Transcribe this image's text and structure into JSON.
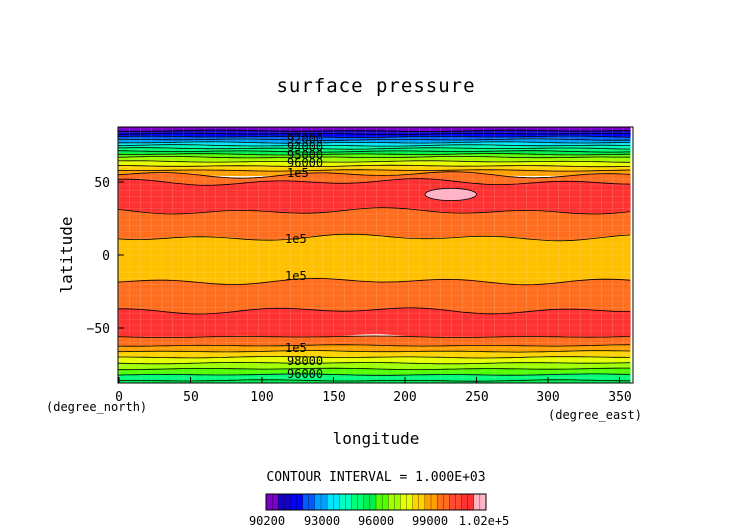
{
  "chart_data": {
    "type": "heatmap",
    "title": "surface pressure",
    "xlabel": "longitude",
    "ylabel": "latitude",
    "x_unit": "(degree_east)",
    "y_unit": "(degree_north)",
    "xlim": [
      0,
      360
    ],
    "ylim": [
      -90,
      90
    ],
    "xticks": [
      "0",
      "50",
      "100",
      "150",
      "200",
      "250",
      "300",
      "350"
    ],
    "yticks": [
      "50",
      "0",
      "−50"
    ],
    "contour_labels": [
      "92000",
      "94000",
      "95000",
      "96000",
      "98000",
      "1e5",
      "1e5",
      "1e5",
      "1e5",
      "98000",
      "96000"
    ],
    "contour_interval_text": "CONTOUR INTERVAL = 1.000E+03",
    "colorbar_ticks": [
      "90200",
      "93000",
      "96000",
      "99000",
      "1.02e+5"
    ],
    "colorbar_colors": [
      "#7a00c8",
      "#1400c8",
      "#0000ff",
      "#005aff",
      "#00a0ff",
      "#00e6ff",
      "#00ffc0",
      "#00ff78",
      "#00f050",
      "#50ff00",
      "#a0ff00",
      "#e6ff00",
      "#ffd200",
      "#ffa000",
      "#ff6e1e",
      "#ff4b32",
      "#ff3232",
      "#ffb4c8"
    ],
    "bands": [
      {
        "lat_top": 88,
        "lat_bottom": 85,
        "color": "#7a00c8"
      },
      {
        "lat_top": 85,
        "lat_bottom": 83,
        "color": "#1400c8"
      },
      {
        "lat_top": 83,
        "lat_bottom": 81,
        "color": "#0000ff"
      },
      {
        "lat_top": 81,
        "lat_bottom": 79,
        "color": "#005aff"
      },
      {
        "lat_top": 79,
        "lat_bottom": 77,
        "color": "#00a0ff"
      },
      {
        "lat_top": 77,
        "lat_bottom": 75,
        "color": "#00e6ff"
      },
      {
        "lat_top": 75,
        "lat_bottom": 73,
        "color": "#00ffc0"
      },
      {
        "lat_top": 73,
        "lat_bottom": 71,
        "color": "#00ff78"
      },
      {
        "lat_top": 71,
        "lat_bottom": 69,
        "color": "#00f050"
      },
      {
        "lat_top": 69,
        "lat_bottom": 67,
        "color": "#50ff00"
      },
      {
        "lat_top": 67,
        "lat_bottom": 64,
        "color": "#a0ff00"
      },
      {
        "lat_top": 64,
        "lat_bottom": 61,
        "color": "#e6ff00"
      },
      {
        "lat_top": 61,
        "lat_bottom": 58,
        "color": "#ffd200"
      },
      {
        "lat_top": 58,
        "lat_bottom": 55,
        "color": "#ffa000"
      },
      {
        "lat_top": 55,
        "lat_bottom": 50,
        "color": "#ff6e1e"
      },
      {
        "lat_top": 50,
        "lat_bottom": 30,
        "color": "#ff3232"
      },
      {
        "lat_top": 30,
        "lat_bottom": 12,
        "color": "#ff6e1e"
      },
      {
        "lat_top": 12,
        "lat_bottom": -18,
        "color": "#ffc000"
      },
      {
        "lat_top": -18,
        "lat_bottom": -38,
        "color": "#ff6e1e"
      },
      {
        "lat_top": -38,
        "lat_bottom": -56,
        "color": "#ff3232"
      },
      {
        "lat_top": -56,
        "lat_bottom": -62,
        "color": "#ff6e1e"
      },
      {
        "lat_top": -62,
        "lat_bottom": -66,
        "color": "#ffa000"
      },
      {
        "lat_top": -66,
        "lat_bottom": -70,
        "color": "#ffd200"
      },
      {
        "lat_top": -70,
        "lat_bottom": -74,
        "color": "#e6ff00"
      },
      {
        "lat_top": -74,
        "lat_bottom": -78,
        "color": "#a0ff00"
      },
      {
        "lat_top": -78,
        "lat_bottom": -82,
        "color": "#50ff00"
      },
      {
        "lat_top": -82,
        "lat_bottom": -86,
        "color": "#00ff78"
      },
      {
        "lat_top": -86,
        "lat_bottom": -90,
        "color": "#00f050"
      }
    ],
    "high_region": {
      "lon": [
        214,
        250
      ],
      "lat": [
        38,
        45
      ],
      "color": "#ffb4c8"
    },
    "grid": true
  }
}
